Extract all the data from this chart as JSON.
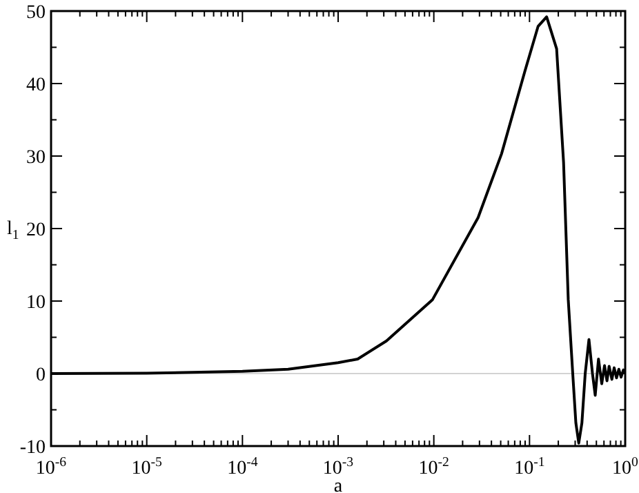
{
  "chart_data": {
    "type": "line",
    "xlabel": "a",
    "ylabel": "l$_{1}$",
    "log": "x",
    "grid": false,
    "legend": false,
    "marker": "none",
    "line_style": "solid",
    "xlim": [
      1e-06,
      1
    ],
    "ylim": [
      -10,
      50
    ],
    "xticks": [
      {
        "value": 1e-06,
        "label": "10$^{-6}$"
      },
      {
        "value": 2e-06,
        "label": null
      },
      {
        "value": 3e-06,
        "label": null
      },
      {
        "value": 4e-06,
        "label": null
      },
      {
        "value": 5e-06,
        "label": null
      },
      {
        "value": 6e-06,
        "label": null
      },
      {
        "value": 7e-06,
        "label": null
      },
      {
        "value": 8e-06,
        "label": null
      },
      {
        "value": 9e-06,
        "label": null
      },
      {
        "value": 1e-05,
        "label": "10$^{-5}$"
      },
      {
        "value": 2e-05,
        "label": null
      },
      {
        "value": 3e-05,
        "label": null
      },
      {
        "value": 4e-05,
        "label": null
      },
      {
        "value": 5e-05,
        "label": null
      },
      {
        "value": 6e-05,
        "label": null
      },
      {
        "value": 7e-05,
        "label": null
      },
      {
        "value": 8e-05,
        "label": null
      },
      {
        "value": 9e-05,
        "label": null
      },
      {
        "value": 0.0001,
        "label": "10$^{-4}$"
      },
      {
        "value": 0.0002,
        "label": null
      },
      {
        "value": 0.0003,
        "label": null
      },
      {
        "value": 0.0004,
        "label": null
      },
      {
        "value": 0.0005,
        "label": null
      },
      {
        "value": 0.0006,
        "label": null
      },
      {
        "value": 0.0007,
        "label": null
      },
      {
        "value": 0.0008,
        "label": null
      },
      {
        "value": 0.0009,
        "label": null
      },
      {
        "value": 0.001,
        "label": "10$^{-3}$"
      },
      {
        "value": 0.002,
        "label": null
      },
      {
        "value": 0.003,
        "label": null
      },
      {
        "value": 0.004,
        "label": null
      },
      {
        "value": 0.005,
        "label": null
      },
      {
        "value": 0.006,
        "label": null
      },
      {
        "value": 0.007,
        "label": null
      },
      {
        "value": 0.008,
        "label": null
      },
      {
        "value": 0.009,
        "label": null
      },
      {
        "value": 0.01,
        "label": "10$^{-2}$"
      },
      {
        "value": 0.02,
        "label": null
      },
      {
        "value": 0.03,
        "label": null
      },
      {
        "value": 0.04,
        "label": null
      },
      {
        "value": 0.05,
        "label": null
      },
      {
        "value": 0.06,
        "label": null
      },
      {
        "value": 0.07,
        "label": null
      },
      {
        "value": 0.08,
        "label": null
      },
      {
        "value": 0.09,
        "label": null
      },
      {
        "value": 0.1,
        "label": "10$^{-1}$"
      },
      {
        "value": 0.2,
        "label": null
      },
      {
        "value": 0.3,
        "label": null
      },
      {
        "value": 0.4,
        "label": null
      },
      {
        "value": 0.5,
        "label": null
      },
      {
        "value": 0.6,
        "label": null
      },
      {
        "value": 0.7,
        "label": null
      },
      {
        "value": 0.8,
        "label": null
      },
      {
        "value": 0.9,
        "label": null
      },
      {
        "value": 1,
        "label": "10$^{0}$"
      }
    ],
    "yticks": [
      -10,
      {
        "value": -5,
        "label": null
      },
      0,
      {
        "value": 5,
        "label": null
      },
      10,
      {
        "value": 15,
        "label": null
      },
      20,
      {
        "value": 25,
        "label": null
      },
      30,
      {
        "value": 35,
        "label": null
      },
      40,
      {
        "value": 45,
        "label": null
      },
      50
    ],
    "ref_lines": [
      {
        "axis": "y",
        "value": 0,
        "color": "#d3d3d3"
      }
    ],
    "series": [
      {
        "color": "#000000",
        "x": [
          1e-06,
          1e-05,
          0.0001,
          0.0003,
          0.001,
          0.0016,
          0.0032,
          0.0097,
          0.029,
          0.051,
          0.089,
          0.123,
          0.151,
          0.192,
          0.227,
          0.254,
          0.283,
          0.305,
          0.327,
          0.353,
          0.382,
          0.418,
          0.455,
          0.486,
          0.526,
          0.569,
          0.608,
          0.645,
          0.679,
          0.726,
          0.767,
          0.812,
          0.858,
          0.906,
          0.957,
          1
        ],
        "values": [
          0.0,
          0.05,
          0.3,
          0.6,
          1.5,
          2,
          4.5,
          10.2,
          21.5,
          30.3,
          41.6,
          47.9,
          49.2,
          44.8,
          29.1,
          10.2,
          0,
          -6.8,
          -9.6,
          -6.8,
          0,
          4.7,
          0,
          -3.0,
          2.0,
          -1.4,
          1.1,
          -1.0,
          1.0,
          -0.8,
          0.8,
          -0.6,
          0.6,
          -0.5,
          0.5,
          0.2
        ]
      }
    ]
  }
}
